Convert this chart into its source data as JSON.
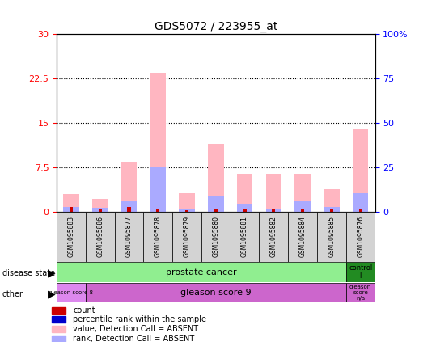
{
  "title": "GDS5072 / 223955_at",
  "samples": [
    "GSM1095883",
    "GSM1095886",
    "GSM1095877",
    "GSM1095878",
    "GSM1095879",
    "GSM1095880",
    "GSM1095881",
    "GSM1095882",
    "GSM1095884",
    "GSM1095885",
    "GSM1095876"
  ],
  "pink_values": [
    3.0,
    2.2,
    8.5,
    23.5,
    3.2,
    11.5,
    6.5,
    6.5,
    6.5,
    3.8,
    14.0
  ],
  "blue_values": [
    0.8,
    0.7,
    1.8,
    7.5,
    0.5,
    2.8,
    1.4,
    0.5,
    2.0,
    0.8,
    3.2
  ],
  "red_values": [
    0.9,
    0.5,
    0.9,
    0.5,
    0.3,
    0.5,
    0.5,
    0.5,
    0.5,
    0.5,
    0.5
  ],
  "left_ylim": [
    0,
    30
  ],
  "right_ylim": [
    0,
    100
  ],
  "left_yticks": [
    0,
    7.5,
    15,
    22.5,
    30
  ],
  "left_yticklabels": [
    "0",
    "7.5",
    "15",
    "22.5",
    "30"
  ],
  "right_yticks": [
    0,
    25,
    50,
    75,
    100
  ],
  "right_yticklabels": [
    "0",
    "25",
    "50",
    "75",
    "100%"
  ],
  "pink_color": "#FFB6C1",
  "blue_color": "#AAAAFF",
  "red_color": "#CC0000",
  "darkblue_color": "#0000CC",
  "gray_color": "#D3D3D3",
  "green_light": "#90EE90",
  "green_dark": "#228B22",
  "purple_light": "#DD88EE",
  "purple_mid": "#CC66CC"
}
